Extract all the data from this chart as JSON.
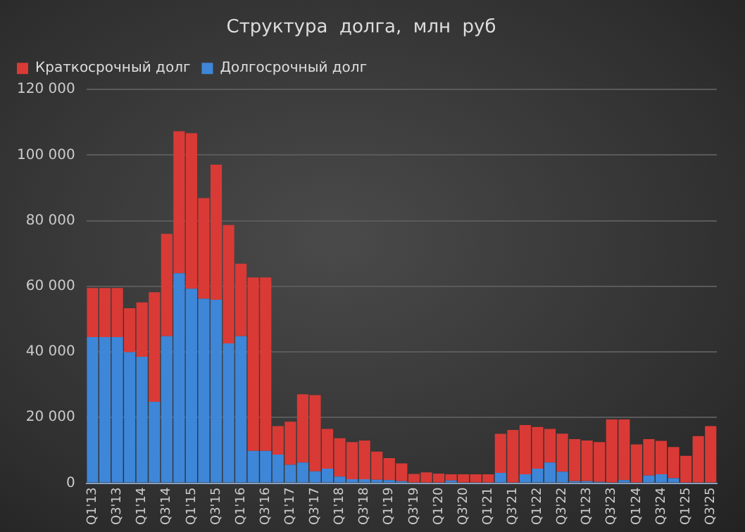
{
  "chart_data": {
    "type": "bar",
    "title": "Структура  долга,  млн  руб",
    "stacked": true,
    "legend": "top left",
    "grid": "y",
    "categories": [
      "Q1'13",
      null,
      "Q3'13",
      null,
      "Q1'14",
      null,
      "Q3'14",
      null,
      "Q1'15",
      null,
      "Q3'15",
      null,
      "Q1'16",
      null,
      "Q3'16",
      null,
      "Q1'17",
      null,
      "Q3'17",
      null,
      "Q1'18",
      null,
      "Q3'18",
      null,
      "Q1'19",
      null,
      "Q3'19",
      null,
      "Q1'20",
      null,
      "Q3'20",
      null,
      "Q1'21",
      null,
      "Q3'21",
      null,
      "Q1'22",
      null,
      "Q3'22",
      null,
      "Q1'23",
      null,
      "Q3'23",
      null,
      "Q1'24",
      null,
      "Q3'24",
      null,
      "Q1'25",
      null,
      "Q3'25"
    ],
    "series": [
      {
        "name": "Долгосрочный долг",
        "color": "#3e86d8",
        "values": [
          44500,
          44500,
          44500,
          39900,
          38500,
          24800,
          44800,
          64000,
          59300,
          56200,
          55900,
          42600,
          44800,
          9800,
          9800,
          8700,
          5600,
          6300,
          3600,
          4400,
          2000,
          1200,
          1200,
          1000,
          900,
          600,
          0,
          0,
          0,
          800,
          0,
          200,
          200,
          3100,
          0,
          2700,
          4400,
          6300,
          3500,
          600,
          600,
          400,
          0,
          900,
          0,
          2300,
          2700,
          1500,
          200,
          0,
          0
        ]
      },
      {
        "name": "Краткосрочный долг",
        "color": "#d93a36",
        "values": [
          15000,
          15000,
          15000,
          13400,
          16600,
          33400,
          31200,
          43300,
          47400,
          30700,
          41200,
          36100,
          22100,
          52900,
          52900,
          8700,
          13100,
          20800,
          23200,
          12100,
          11700,
          11300,
          11800,
          8600,
          6700,
          5400,
          2800,
          3300,
          2900,
          1900,
          2700,
          2500,
          2500,
          11900,
          16200,
          15000,
          12700,
          10200,
          11600,
          12800,
          12400,
          12100,
          19400,
          18500,
          11800,
          11100,
          10200,
          9500,
          8100,
          14300,
          17400
        ]
      }
    ],
    "ylim": [
      0,
      120000
    ],
    "yticks": [
      0,
      {
        "value": 20000,
        "label": "20 000"
      },
      {
        "value": 40000,
        "label": "40 000"
      },
      {
        "value": 60000,
        "label": "60 000"
      },
      {
        "value": 80000,
        "label": "80 000"
      },
      {
        "value": 100000,
        "label": "100 000"
      },
      {
        "value": 120000,
        "label": "120 000"
      }
    ]
  }
}
